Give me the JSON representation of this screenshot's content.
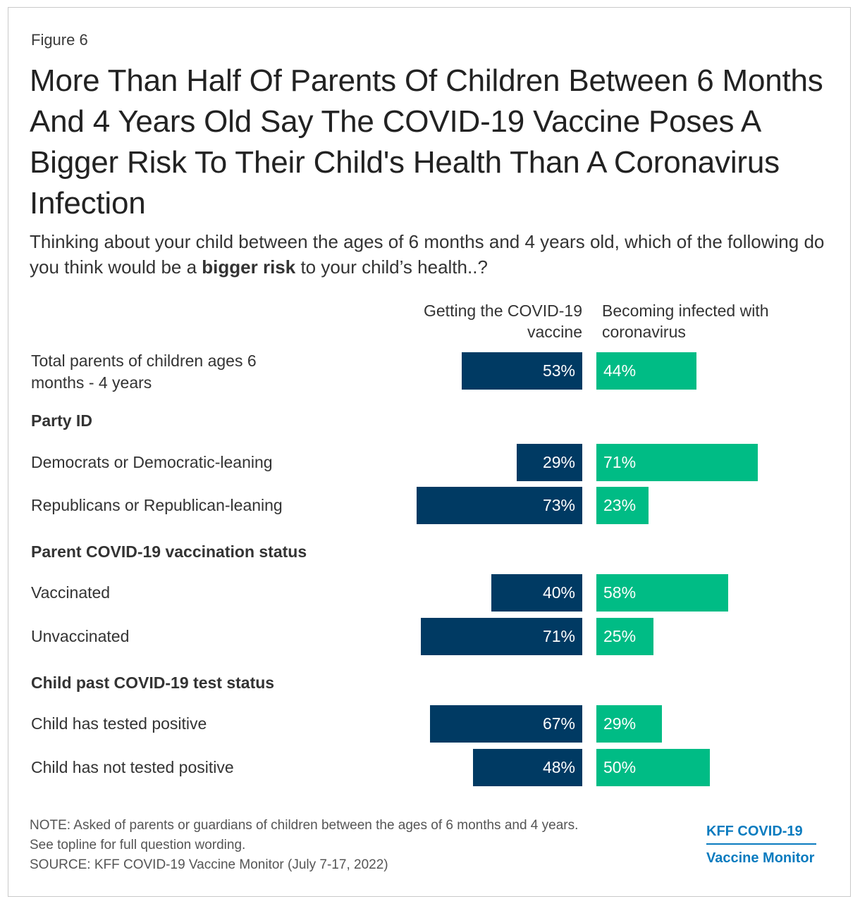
{
  "figure_label": "Figure 6",
  "title": "More Than Half Of Parents Of Children Between 6 Months And 4 Years Old Say The COVID-19 Vaccine Poses A Bigger Risk To Their Child's Health Than A Coronavirus Infection",
  "subtitle": {
    "before": "Thinking about your child between the ages of 6 months and 4 years old, which of the following do you think would be a ",
    "bold": "bigger risk",
    "after": " to your child’s health..?"
  },
  "colors": {
    "vaccine": "#003a63",
    "infection": "#00bc85",
    "logo": "#0a7bbf"
  },
  "chart_data": {
    "type": "bar",
    "title": "More Than Half Of Parents Of Children Between 6 Months And 4 Years Old Say The COVID-19 Vaccine Poses A Bigger Risk To Their Child's Health Than A Coronavirus Infection",
    "series_names": [
      "Getting the COVID-19 vaccine",
      "Becoming infected with coronavirus"
    ],
    "rows": [
      {
        "kind": "data",
        "label": "Total parents of children ages 6 months - 4 years",
        "vaccine": 53,
        "infection": 44
      },
      {
        "kind": "group",
        "label": "Party ID"
      },
      {
        "kind": "data",
        "label": "Democrats or Democratic-leaning",
        "vaccine": 29,
        "infection": 71
      },
      {
        "kind": "data",
        "label": "Republicans or Republican-leaning",
        "vaccine": 73,
        "infection": 23
      },
      {
        "kind": "group",
        "label": "Parent COVID-19 vaccination status"
      },
      {
        "kind": "data",
        "label": "Vaccinated",
        "vaccine": 40,
        "infection": 58
      },
      {
        "kind": "data",
        "label": "Unvaccinated",
        "vaccine": 71,
        "infection": 25
      },
      {
        "kind": "group",
        "label": "Child past COVID-19 test status"
      },
      {
        "kind": "data",
        "label": "Child has tested positive",
        "vaccine": 67,
        "infection": 29
      },
      {
        "kind": "data",
        "label": "Child has not tested positive",
        "vaccine": 48,
        "infection": 50
      }
    ],
    "value_suffix": "%",
    "xlim": [
      0,
      100
    ]
  },
  "footer": {
    "note_line1": "NOTE: Asked of parents or guardians of children between the ages of 6 months and 4 years.",
    "note_line2": "See topline for full question wording.",
    "source": "SOURCE: KFF COVID-19 Vaccine Monitor (July 7-17, 2022)"
  },
  "logo": {
    "line1": "KFF COVID-19",
    "line2": "Vaccine Monitor"
  }
}
